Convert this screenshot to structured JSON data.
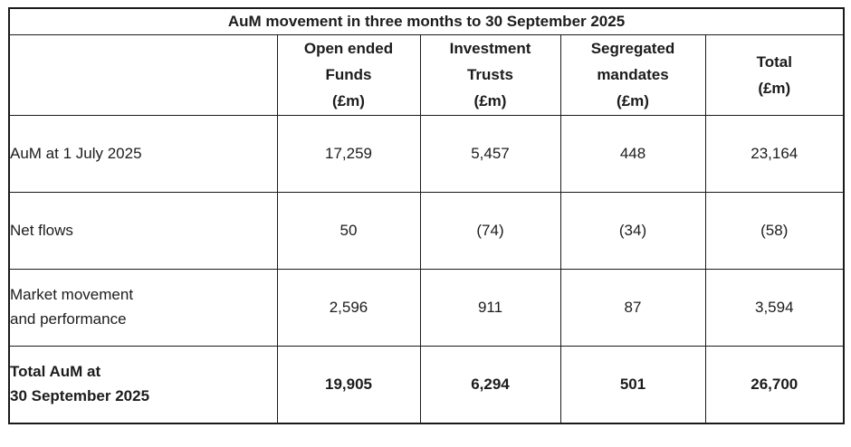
{
  "colors": {
    "background": "#ffffff",
    "border": "#1a1a1a",
    "text": "#1c1c1c"
  },
  "table": {
    "title": "AuM movement in three months to 30 September 2025",
    "headers": [
      "",
      "Open ended\nFunds\n(£m)",
      "Investment\nTrusts\n(£m)",
      "Segregated\nmandates\n(£m)",
      "Total\n(£m)"
    ],
    "rows": [
      {
        "label": "AuM at 1 July 2025",
        "values": [
          "17,259",
          "5,457",
          "448",
          "23,164"
        ]
      },
      {
        "label": "Net flows",
        "values": [
          "50",
          "(74)",
          "(34)",
          "(58)"
        ]
      },
      {
        "label": "Market movement\nand performance",
        "values": [
          "2,596",
          "911",
          "87",
          "3,594"
        ]
      },
      {
        "label": "Total AuM at\n30 September 2025",
        "values": [
          "19,905",
          "6,294",
          "501",
          "26,700"
        ]
      }
    ]
  }
}
